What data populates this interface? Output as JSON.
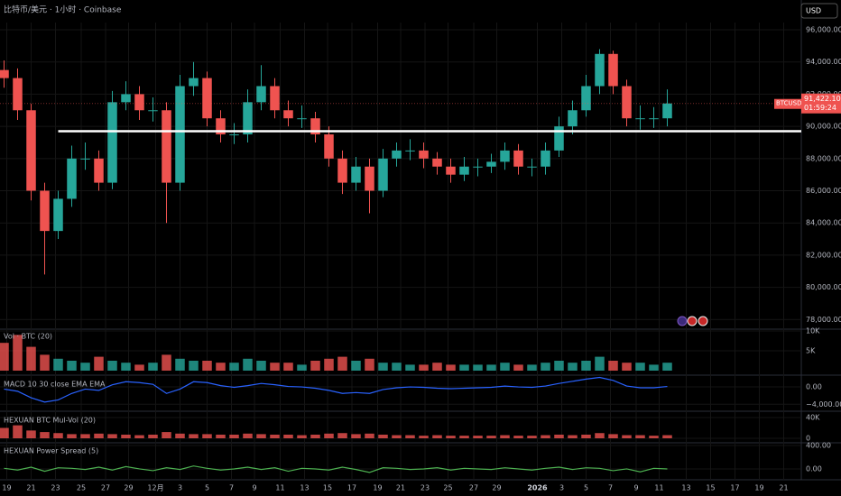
{
  "header": {
    "title": "比特币/美元 · 1小时 · Coinbase",
    "currency": "USD"
  },
  "chart_data": [
    {
      "type": "candlestick",
      "up_color": "#26a69a",
      "down_color": "#ef5350",
      "open": [
        93500,
        93000,
        91000,
        86000,
        83500,
        85500,
        88000,
        88000,
        86500,
        91500,
        92000,
        91000,
        91000,
        86500,
        92500,
        93000,
        90500,
        89500,
        89500,
        91500,
        92500,
        91000,
        90500,
        90500,
        89500,
        88000,
        86500,
        87500,
        86000,
        88000,
        88500,
        88500,
        88000,
        87500,
        87000,
        87500,
        87500,
        87800,
        88500,
        87500,
        87500,
        88500,
        90000,
        91000,
        92500,
        94500,
        92500,
        90500,
        90500,
        90500
      ],
      "high": [
        94100,
        93600,
        91400,
        86500,
        86000,
        88800,
        89000,
        88500,
        92200,
        92800,
        92500,
        91800,
        91500,
        93200,
        94000,
        93400,
        91000,
        90200,
        92300,
        93800,
        93000,
        91600,
        91300,
        90900,
        90000,
        88500,
        88100,
        88000,
        88600,
        89000,
        89200,
        89000,
        88400,
        88000,
        88100,
        88000,
        88300,
        89000,
        88900,
        88000,
        89000,
        90600,
        91600,
        93200,
        94800,
        94700,
        92900,
        91300,
        91200,
        92300
      ],
      "low": [
        92400,
        90400,
        85400,
        80800,
        83000,
        85000,
        87300,
        86000,
        86100,
        91000,
        90400,
        90300,
        84000,
        86000,
        91900,
        90000,
        89000,
        88900,
        89000,
        91000,
        90500,
        90000,
        89900,
        89000,
        87500,
        85800,
        86000,
        84600,
        85600,
        87500,
        87900,
        87400,
        87000,
        86500,
        86600,
        86900,
        87100,
        87300,
        87000,
        86900,
        87000,
        88100,
        89500,
        90600,
        92000,
        92000,
        90000,
        89800,
        89900,
        90000
      ],
      "close": [
        93000,
        91000,
        86000,
        83500,
        85500,
        88000,
        88000,
        86500,
        91500,
        92000,
        91000,
        91000,
        86500,
        92500,
        93000,
        90500,
        89500,
        89500,
        91500,
        92500,
        91000,
        90500,
        90500,
        89500,
        88000,
        86500,
        87500,
        86000,
        88000,
        88500,
        88500,
        88000,
        87500,
        87000,
        87500,
        87500,
        87800,
        88500,
        87500,
        87500,
        88500,
        90000,
        91000,
        92500,
        94500,
        92500,
        90500,
        90500,
        90500,
        91422.1
      ],
      "last_price": {
        "symbol": "BTCUSD",
        "label": "91,422.10",
        "countdown": "01:59:24"
      },
      "hline": {
        "value": 89700,
        "color": "#ffffff"
      },
      "ylim": [
        77400,
        96450
      ],
      "yticks": [
        {
          "value": 96000,
          "label": "96,000.00"
        },
        {
          "value": 94000,
          "label": "94,000.00"
        },
        {
          "value": 92000,
          "label": "92,000.00"
        },
        {
          "value": 90000,
          "label": "90,000.00"
        },
        {
          "value": 88000,
          "label": "88,000.00"
        },
        {
          "value": 86000,
          "label": "86,000.00"
        },
        {
          "value": 84000,
          "label": "84,000.00"
        },
        {
          "value": 82000,
          "label": "82,000.00"
        },
        {
          "value": 80000,
          "label": "80,000.00"
        },
        {
          "value": 78000,
          "label": "78,000.00"
        }
      ],
      "xlim": [
        -0.3,
        58.9
      ],
      "xticks": [
        {
          "value": 0.2,
          "label": "19"
        },
        {
          "value": 2,
          "label": "21"
        },
        {
          "value": 3.8,
          "label": "23"
        },
        {
          "value": 5.7,
          "label": "25"
        },
        {
          "value": 7.5,
          "label": "27"
        },
        {
          "value": 9.2,
          "label": "29"
        },
        {
          "value": 11.2,
          "label": "12月"
        },
        {
          "value": 13,
          "label": "3"
        },
        {
          "value": 15,
          "label": "5"
        },
        {
          "value": 16.8,
          "label": "7"
        },
        {
          "value": 18.5,
          "label": "9"
        },
        {
          "value": 20.4,
          "label": "11"
        },
        {
          "value": 22.2,
          "label": "13"
        },
        {
          "value": 23.9,
          "label": "15"
        },
        {
          "value": 25.7,
          "label": "17"
        },
        {
          "value": 27.6,
          "label": "19"
        },
        {
          "value": 29.3,
          "label": "21"
        },
        {
          "value": 31.1,
          "label": "23"
        },
        {
          "value": 32.8,
          "label": "25"
        },
        {
          "value": 34.7,
          "label": "27"
        },
        {
          "value": 36.4,
          "label": "29"
        },
        {
          "value": 39.4,
          "label": "2026"
        },
        {
          "value": 41.2,
          "label": "3"
        },
        {
          "value": 43,
          "label": "5"
        },
        {
          "value": 44.8,
          "label": "7"
        },
        {
          "value": 46.7,
          "label": "9"
        },
        {
          "value": 48.4,
          "label": "11"
        },
        {
          "value": 50.4,
          "label": "13"
        },
        {
          "value": 52.2,
          "label": "15"
        },
        {
          "value": 54,
          "label": "17"
        },
        {
          "value": 55.8,
          "label": "19"
        },
        {
          "value": 57.6,
          "label": "21"
        }
      ],
      "grid": true
    },
    {
      "type": "bar",
      "title": "Vol · BTC (20)",
      "color": "#26a69a",
      "values": [
        7000,
        9000,
        6000,
        4000,
        3000,
        2500,
        2000,
        3500,
        2500,
        2000,
        1500,
        2000,
        4000,
        3000,
        2500,
        2500,
        2000,
        2000,
        3000,
        2500,
        2000,
        2000,
        1500,
        2500,
        3000,
        3500,
        2500,
        3000,
        2000,
        2000,
        1500,
        1500,
        2000,
        1500,
        1500,
        1500,
        1500,
        2000,
        1500,
        1500,
        2000,
        2500,
        2000,
        2500,
        3500,
        2500,
        2000,
        2000,
        1500,
        2000
      ],
      "ylim": [
        0,
        10450
      ],
      "yticks": [
        {
          "value": 10000,
          "label": "10K"
        },
        {
          "value": 5000,
          "label": "5K"
        }
      ]
    },
    {
      "type": "line",
      "title": "MACD 10 30 close EMA EMA",
      "color": "#2962ff",
      "values": [
        -500,
        -1000,
        -2500,
        -3500,
        -3000,
        -1500,
        -500,
        -800,
        500,
        1200,
        1000,
        600,
        -1500,
        -500,
        1200,
        1000,
        300,
        -100,
        300,
        800,
        500,
        100,
        0,
        -300,
        -800,
        -1500,
        -1300,
        -1500,
        -600,
        -200,
        0,
        -100,
        -300,
        -400,
        -300,
        -200,
        -100,
        200,
        0,
        -100,
        200,
        800,
        1300,
        1800,
        2200,
        1500,
        200,
        -200,
        -200,
        100
      ],
      "ylim": [
        -5400,
        2300
      ],
      "yticks": [
        {
          "value": 0,
          "label": "0.00"
        },
        {
          "value": -4000,
          "label": "−4,000.00"
        }
      ]
    },
    {
      "type": "bar",
      "title": "HEXUAN BTC Mul-Vol (20)",
      "color": "#ef5350",
      "values": [
        20000,
        25000,
        15000,
        12000,
        10000,
        8000,
        8000,
        9000,
        8000,
        7000,
        6000,
        7000,
        12000,
        9000,
        8000,
        8000,
        7000,
        7000,
        9000,
        8000,
        7000,
        7000,
        6000,
        7000,
        9000,
        10000,
        8000,
        9000,
        7000,
        6000,
        6000,
        5000,
        6000,
        5000,
        5000,
        5000,
        5000,
        6000,
        5000,
        5000,
        6000,
        7000,
        6000,
        7000,
        10000,
        8000,
        6000,
        6000,
        5000,
        6000
      ],
      "ylim": [
        0,
        48700
      ],
      "yticks": [
        {
          "value": 40000,
          "label": "40K"
        },
        0
      ]
    },
    {
      "type": "line",
      "title": "HEXUAN Power Spread (5)",
      "color": "#4caf50",
      "values": [
        10,
        -20,
        30,
        -40,
        20,
        10,
        -10,
        30,
        -20,
        40,
        0,
        -30,
        20,
        -10,
        50,
        10,
        -20,
        0,
        30,
        -10,
        20,
        -40,
        10,
        0,
        -20,
        30,
        -10,
        -60,
        20,
        10,
        -10,
        0,
        20,
        -20,
        10,
        0,
        -10,
        20,
        0,
        -20,
        10,
        30,
        -10,
        20,
        10,
        -30,
        0,
        -50,
        10,
        0
      ],
      "ylim": [
        -185,
        430
      ],
      "yticks": [
        {
          "value": 400,
          "label": "400.00"
        },
        {
          "value": 0,
          "label": "0.00"
        }
      ]
    }
  ]
}
